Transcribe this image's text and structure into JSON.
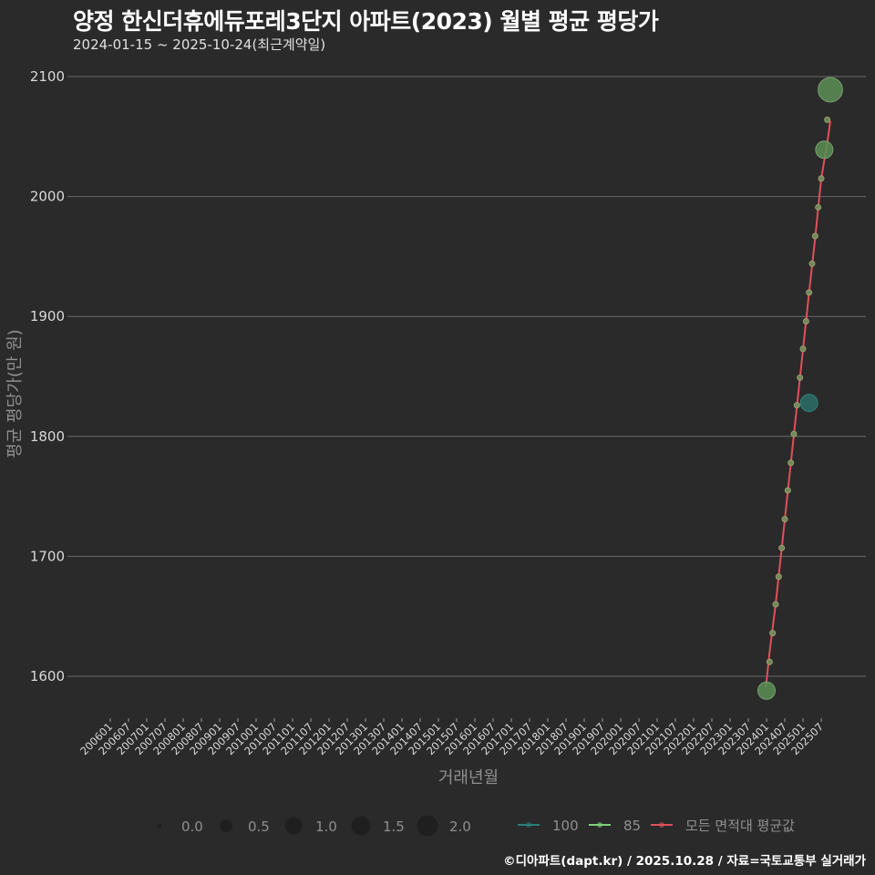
{
  "header": {
    "title": "양정 한신더휴에듀포레3단지 아파트(2023) 월별 평균 평당가",
    "subtitle": "2024-01-15 ~ 2025-10-24(최근계약일)"
  },
  "footer": {
    "credit": "©디아파트(dapt.kr) / 2025.10.28 / 자료=국토교통부 실거래가"
  },
  "colors": {
    "background": "#2a2a2a",
    "grid": "#6a6a6a",
    "series_100": "#2a7f7a",
    "series_85": "#7fd17a",
    "series_avg": "#e0505a",
    "point_85_fill": "#5a8f55",
    "point_100_fill": "#2c6e68"
  },
  "chart_data": {
    "type": "scatter",
    "title": "양정 한신더휴에듀포레3단지 아파트(2023) 월별 평균 평당가",
    "subtitle": "2024-01-15 ~ 2025-10-24(최근계약일)",
    "xlabel": "거래년월",
    "ylabel": "평균 평당가(만 원)",
    "ylim": [
      1565,
      2115
    ],
    "yticks": [
      1600,
      1700,
      1800,
      1900,
      2000,
      2100
    ],
    "xticks": [
      "200601",
      "200607",
      "200701",
      "200707",
      "200801",
      "200807",
      "200901",
      "200907",
      "201001",
      "201007",
      "201101",
      "201107",
      "201201",
      "201207",
      "201301",
      "201307",
      "201401",
      "201407",
      "201501",
      "201507",
      "201601",
      "201607",
      "201701",
      "201707",
      "201801",
      "201807",
      "201901",
      "201907",
      "202001",
      "202007",
      "202101",
      "202107",
      "202201",
      "202207",
      "202301",
      "202307",
      "202401",
      "202407",
      "202501",
      "202507"
    ],
    "grid": "horizontal",
    "size_legend": {
      "title": "",
      "values": [
        "0.0",
        "0.5",
        "1.0",
        "1.5",
        "2.0"
      ]
    },
    "legend": [
      {
        "name": "100",
        "color": "#2a7f7a"
      },
      {
        "name": "85",
        "color": "#7fd17a"
      },
      {
        "name": "모든 면적대 평균값",
        "color": "#e0505a"
      }
    ],
    "series": [
      {
        "name": "85",
        "kind": "points",
        "points": [
          {
            "x": "202401",
            "y": 1588,
            "size": 1.0
          },
          {
            "x": "202402",
            "y": 1612,
            "size": 0.0
          },
          {
            "x": "202403",
            "y": 1636,
            "size": 0.0
          },
          {
            "x": "202404",
            "y": 1660,
            "size": 0.0
          },
          {
            "x": "202405",
            "y": 1683,
            "size": 0.0
          },
          {
            "x": "202406",
            "y": 1707,
            "size": 0.0
          },
          {
            "x": "202407",
            "y": 1731,
            "size": 0.0
          },
          {
            "x": "202408",
            "y": 1755,
            "size": 0.0
          },
          {
            "x": "202409",
            "y": 1778,
            "size": 0.0
          },
          {
            "x": "202410",
            "y": 1802,
            "size": 0.0
          },
          {
            "x": "202411",
            "y": 1826,
            "size": 0.0
          },
          {
            "x": "202412",
            "y": 1849,
            "size": 0.0
          },
          {
            "x": "202501",
            "y": 1873,
            "size": 0.0
          },
          {
            "x": "202502",
            "y": 1896,
            "size": 0.0
          },
          {
            "x": "202503",
            "y": 1920,
            "size": 0.0
          },
          {
            "x": "202504",
            "y": 1944,
            "size": 0.0
          },
          {
            "x": "202505",
            "y": 1967,
            "size": 0.0
          },
          {
            "x": "202506",
            "y": 1991,
            "size": 0.0
          },
          {
            "x": "202507",
            "y": 2015,
            "size": 0.0
          },
          {
            "x": "202508",
            "y": 2039,
            "size": 1.0
          },
          {
            "x": "202509",
            "y": 2064,
            "size": 0.0
          },
          {
            "x": "202510",
            "y": 2089,
            "size": 1.6
          }
        ]
      },
      {
        "name": "100",
        "kind": "points",
        "points": [
          {
            "x": "202503",
            "y": 1828,
            "size": 1.0
          }
        ]
      },
      {
        "name": "모든 면적대 평균값",
        "kind": "line",
        "points": [
          {
            "x": "202312.8",
            "y": 1591
          },
          {
            "x": "202402",
            "y": 1620
          },
          {
            "x": "202404",
            "y": 1660
          },
          {
            "x": "202406",
            "y": 1707
          },
          {
            "x": "202409",
            "y": 1778
          },
          {
            "x": "202412",
            "y": 1849
          },
          {
            "x": "202503",
            "y": 1920
          },
          {
            "x": "202505",
            "y": 1965
          },
          {
            "x": "202507",
            "y": 2015
          },
          {
            "x": "202509",
            "y": 2045
          },
          {
            "x": "202510",
            "y": 2063
          }
        ]
      }
    ]
  }
}
